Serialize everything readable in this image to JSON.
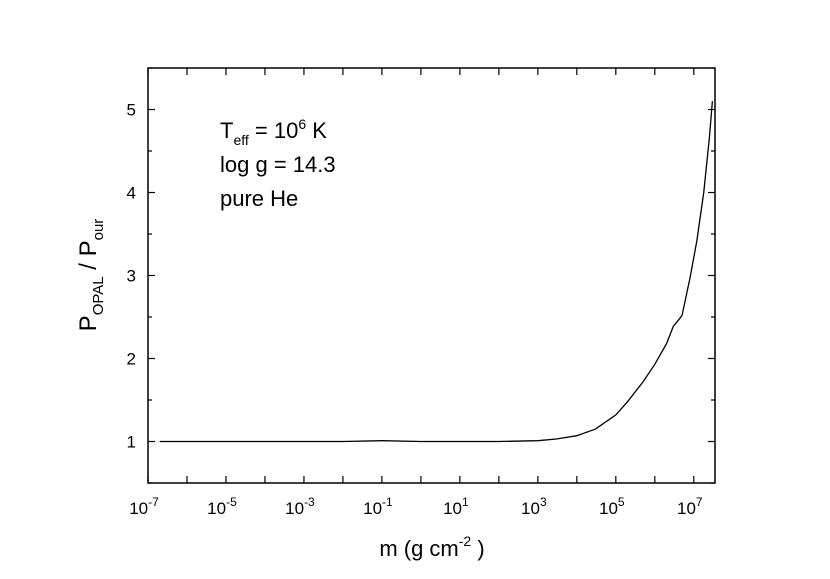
{
  "chart_data": {
    "type": "line",
    "x_scale": "log10",
    "xlim": [
      1e-07,
      35000000.0
    ],
    "ylim": [
      0.5,
      5.5
    ],
    "x_ticks": [
      {
        "base": "10",
        "exp": "-7",
        "value": 1e-07
      },
      {
        "base": "10",
        "exp": "-5",
        "value": 1e-05
      },
      {
        "base": "10",
        "exp": "-3",
        "value": 0.001
      },
      {
        "base": "10",
        "exp": "-1",
        "value": 0.1
      },
      {
        "base": "10",
        "exp": "1",
        "value": 10.0
      },
      {
        "base": "10",
        "exp": "3",
        "value": 1000.0
      },
      {
        "base": "10",
        "exp": "5",
        "value": 100000.0
      },
      {
        "base": "10",
        "exp": "7",
        "value": 10000000.0
      }
    ],
    "y_ticks": [
      "1",
      "2",
      "3",
      "4",
      "5"
    ],
    "xlabel": {
      "text": "m (g cm",
      "exp": "-2",
      "close": " )"
    },
    "ylabel": {
      "p1": "P",
      "sub1": "OPAL",
      "mid": " / P",
      "sub2": "our"
    },
    "annotations": {
      "teff": {
        "t": "T",
        "sub": "eff",
        "mid": " = 10",
        "sup": "6",
        "end": " K"
      },
      "logg": "log g = 14.3",
      "comp": "pure He"
    },
    "grid": false,
    "legend": "none",
    "series": [
      {
        "color": "#000000",
        "x": [
          2e-07,
          1e-06,
          1e-05,
          0.0001,
          0.001,
          0.01,
          0.1,
          1,
          10,
          100,
          1000,
          3000,
          10000,
          30000,
          100000,
          200000,
          500000,
          1000000,
          2000000,
          3000000,
          4000000,
          5000000,
          8000000,
          12000000,
          18000000,
          25000000,
          30000000
        ],
        "y": [
          1.0,
          1.0,
          1.0,
          1.0,
          1.0,
          1.0,
          1.01,
          1.0,
          1.0,
          1.0,
          1.01,
          1.03,
          1.07,
          1.15,
          1.32,
          1.48,
          1.72,
          1.93,
          2.18,
          2.39,
          2.46,
          2.52,
          2.97,
          3.42,
          4.0,
          4.65,
          5.1
        ]
      }
    ]
  }
}
